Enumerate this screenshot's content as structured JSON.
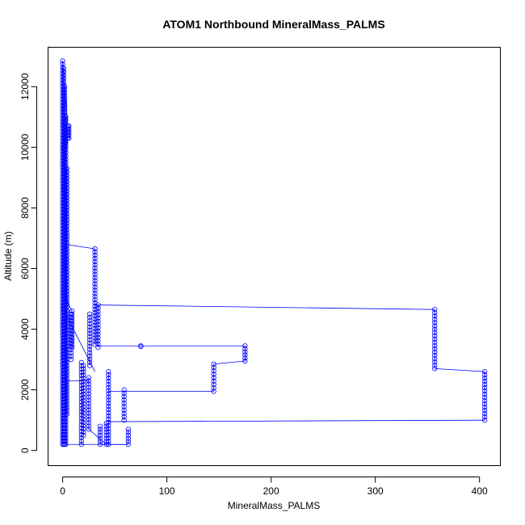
{
  "chart_data": {
    "type": "scatter",
    "title": "ATOM1 Northbound MineralMass_PALMS",
    "xlabel": "MineralMass_PALMS",
    "ylabel": "Altitude (m)",
    "xlim": [
      -14,
      420
    ],
    "ylim": [
      -500,
      13300
    ],
    "x_ticks": [
      0,
      100,
      200,
      300,
      400
    ],
    "y_ticks": [
      0,
      2000,
      4000,
      6000,
      8000,
      10000,
      12000
    ],
    "x_tick_labels": [
      "0",
      "100",
      "200",
      "300",
      "400"
    ],
    "y_tick_labels": [
      "0",
      "2000",
      "4000",
      "6000",
      "8000",
      "10000",
      "12000"
    ],
    "grid": false,
    "marker": "open-circle",
    "connected_by_line": true,
    "color": "#0000ff",
    "series": [
      {
        "segments": [
          {
            "x": 0,
            "y": [
              200,
              12850
            ]
          },
          {
            "x": 1,
            "y": [
              200,
              12600
            ]
          },
          {
            "x": 2,
            "y": [
              200,
              12000
            ]
          },
          {
            "x": 3,
            "y": [
              200,
              11000
            ]
          },
          {
            "x": 4,
            "y": [
              1200,
              9300
            ]
          },
          {
            "x": 5,
            "y": [
              10300,
              10700
            ]
          },
          {
            "x": 6,
            "y": [
              10300,
              10700
            ]
          },
          {
            "x": 8,
            "y": [
              3000,
              4500
            ]
          },
          {
            "x": 9,
            "y": [
              3400,
              4600
            ]
          },
          {
            "x": 18,
            "y": [
              200,
              2900
            ]
          },
          {
            "x": 20,
            "y": [
              500,
              2800
            ]
          },
          {
            "x": 25,
            "y": [
              700,
              2400
            ]
          },
          {
            "x": 26,
            "y": [
              2800,
              4500
            ]
          },
          {
            "x": 31,
            "y": [
              3500,
              6650
            ]
          },
          {
            "x": 34,
            "y": [
              3400,
              4800
            ]
          },
          {
            "x": 36,
            "y": [
              200,
              800
            ]
          },
          {
            "x": 42,
            "y": [
              200,
              900
            ]
          },
          {
            "x": 44,
            "y": [
              200,
              2600
            ]
          },
          {
            "x": 59,
            "y": [
              1000,
              2000
            ]
          },
          {
            "x": 63,
            "y": [
              200,
              700
            ]
          },
          {
            "x": 75,
            "y": [
              3430,
              3450
            ]
          },
          {
            "x": 145,
            "y": [
              1950,
              2850
            ]
          },
          {
            "x": 175,
            "y": [
              2950,
              3450
            ]
          },
          {
            "x": 357,
            "y": [
              2700,
              4650
            ]
          },
          {
            "x": 405,
            "y": [
              1000,
              2600
            ]
          }
        ],
        "connectors": [
          [
            [
              0,
              12850
            ],
            [
              5,
              10700
            ]
          ],
          [
            [
              5,
              10300
            ],
            [
              2,
              9500
            ]
          ],
          [
            [
              3,
              6800
            ],
            [
              31,
              6650
            ]
          ],
          [
            [
              31,
              4800
            ],
            [
              357,
              4650
            ]
          ],
          [
            [
              357,
              2700
            ],
            [
              405,
              2600
            ]
          ],
          [
            [
              405,
              1000
            ],
            [
              44,
              950
            ]
          ],
          [
            [
              9,
              4600
            ],
            [
              3,
              5000
            ]
          ],
          [
            [
              34,
              3450
            ],
            [
              175,
              3450
            ]
          ],
          [
            [
              175,
              2950
            ],
            [
              145,
              2850
            ]
          ],
          [
            [
              145,
              1950
            ],
            [
              44,
              1950
            ]
          ],
          [
            [
              59,
              200
            ],
            [
              36,
              200
            ]
          ],
          [
            [
              3,
              4500
            ],
            [
              31,
              2600
            ]
          ],
          [
            [
              3,
              2300
            ],
            [
              25,
              2300
            ]
          ],
          [
            [
              25,
              700
            ],
            [
              42,
              200
            ]
          ],
          [
            [
              4,
              200
            ],
            [
              63,
              200
            ]
          ]
        ]
      }
    ]
  }
}
